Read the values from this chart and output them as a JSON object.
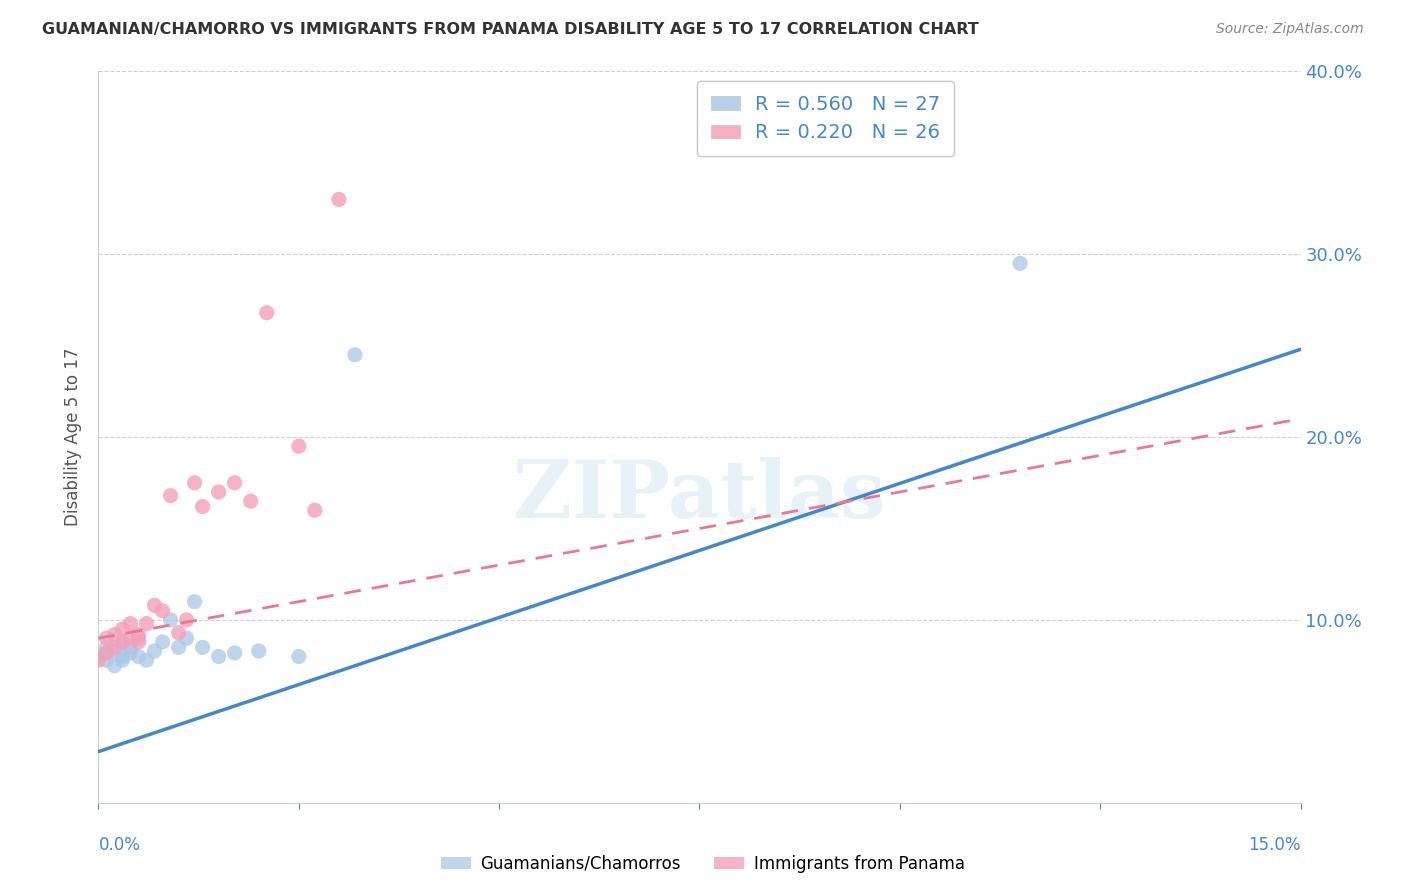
{
  "title": "GUAMANIAN/CHAMORRO VS IMMIGRANTS FROM PANAMA DISABILITY AGE 5 TO 17 CORRELATION CHART",
  "source": "Source: ZipAtlas.com",
  "ylabel": "Disability Age 5 to 17",
  "legend_entries": [
    {
      "label": "R = 0.560   N = 27",
      "color": "#a8c8e8"
    },
    {
      "label": "R = 0.220   N = 26",
      "color": "#f4a0b8"
    }
  ],
  "legend_bottom": [
    "Guamanians/Chamorros",
    "Immigrants from Panama"
  ],
  "blue_color": "#a8c8e8",
  "pink_color": "#f4a0b8",
  "blue_line_color": "#4488cc",
  "pink_line_color": "#e87898",
  "xlim": [
    0.0,
    0.15
  ],
  "ylim": [
    0.0,
    0.4
  ],
  "blue_scatter_x": [
    0.0,
    0.001,
    0.001,
    0.001,
    0.002,
    0.002,
    0.003,
    0.003,
    0.003,
    0.004,
    0.004,
    0.005,
    0.005,
    0.006,
    0.007,
    0.008,
    0.009,
    0.01,
    0.011,
    0.012,
    0.013,
    0.015,
    0.017,
    0.02,
    0.025,
    0.032,
    0.115
  ],
  "blue_scatter_y": [
    0.08,
    0.078,
    0.082,
    0.085,
    0.075,
    0.083,
    0.08,
    0.078,
    0.087,
    0.082,
    0.085,
    0.08,
    0.09,
    0.078,
    0.083,
    0.088,
    0.1,
    0.085,
    0.09,
    0.11,
    0.085,
    0.08,
    0.082,
    0.083,
    0.08,
    0.245,
    0.295
  ],
  "pink_scatter_x": [
    0.0,
    0.001,
    0.001,
    0.002,
    0.002,
    0.003,
    0.003,
    0.004,
    0.004,
    0.005,
    0.005,
    0.006,
    0.007,
    0.008,
    0.009,
    0.01,
    0.011,
    0.012,
    0.013,
    0.015,
    0.017,
    0.019,
    0.021,
    0.025,
    0.027,
    0.03
  ],
  "pink_scatter_y": [
    0.078,
    0.082,
    0.09,
    0.085,
    0.092,
    0.088,
    0.095,
    0.09,
    0.098,
    0.088,
    0.092,
    0.098,
    0.108,
    0.105,
    0.168,
    0.093,
    0.1,
    0.175,
    0.162,
    0.17,
    0.175,
    0.165,
    0.268,
    0.195,
    0.16,
    0.33
  ],
  "blue_line_x0": 0.0,
  "blue_line_y0": 0.028,
  "blue_line_x1": 0.15,
  "blue_line_y1": 0.248,
  "pink_line_x0": 0.0,
  "pink_line_y0": 0.09,
  "pink_line_x1": 0.15,
  "pink_line_y1": 0.21,
  "watermark": "ZIPatlas"
}
